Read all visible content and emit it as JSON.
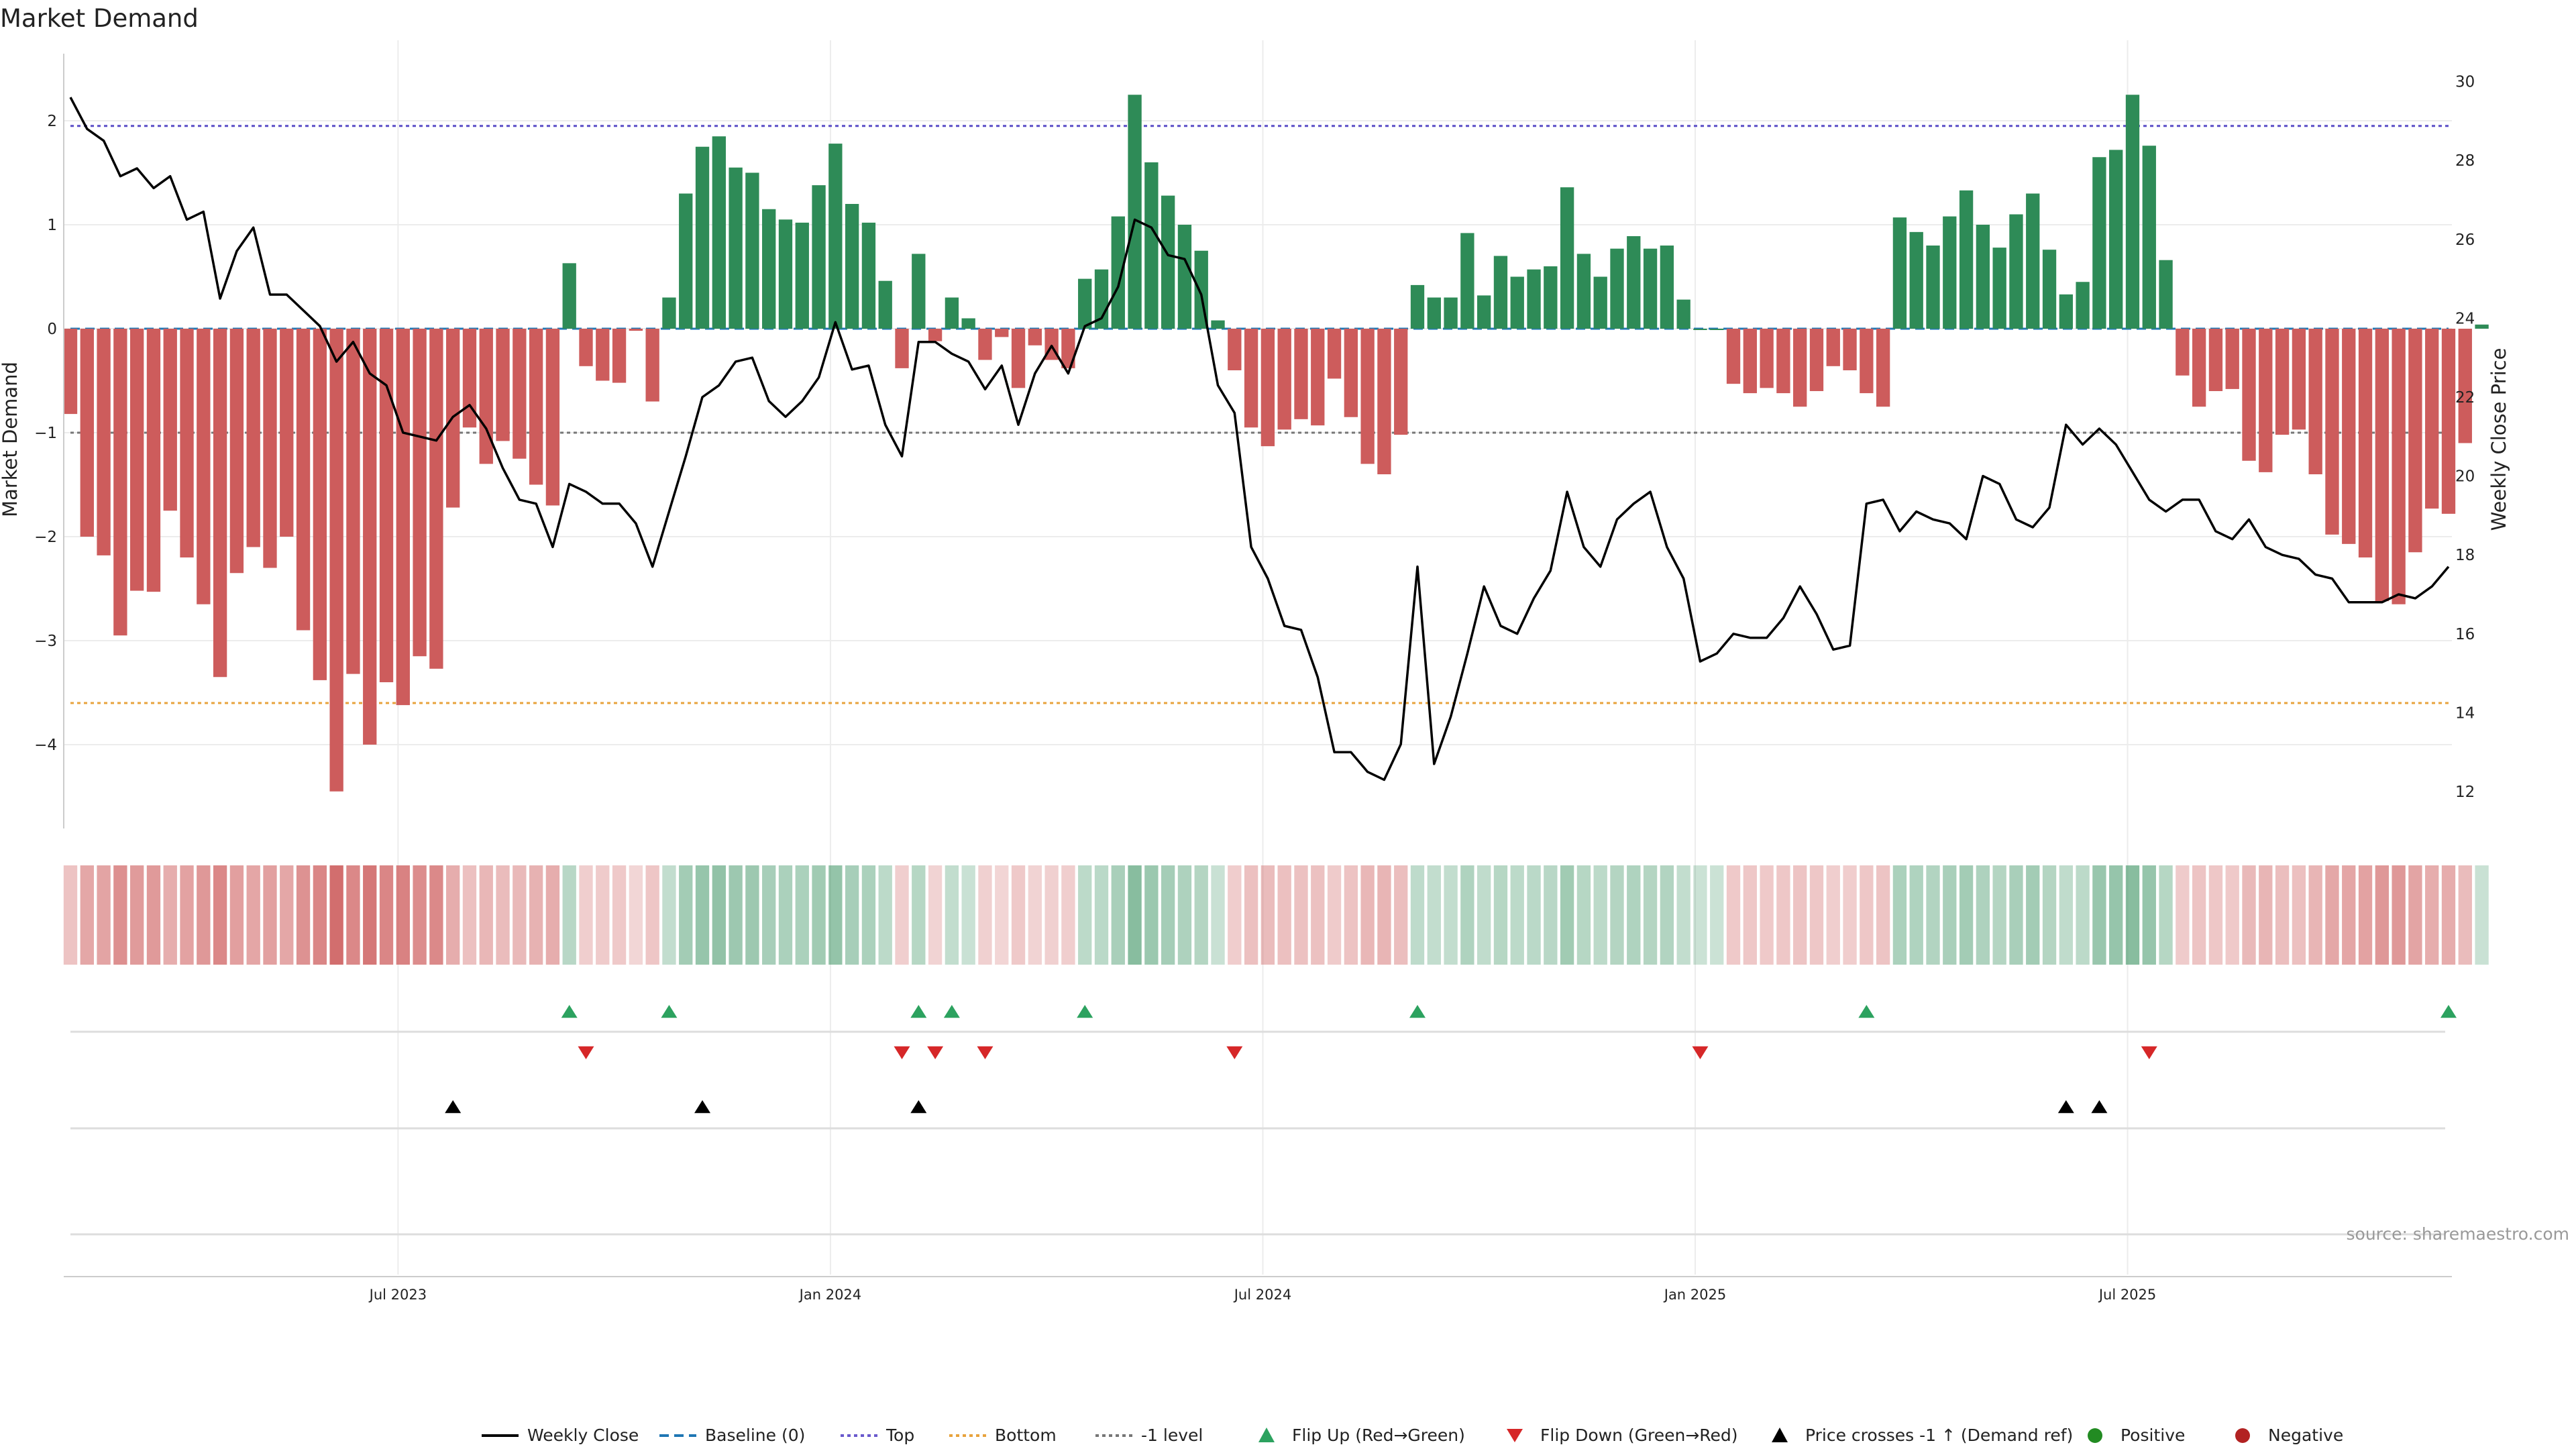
{
  "chart_data": {
    "type": "bar",
    "title": "Market Demand",
    "ylabel": "Market Demand",
    "y2label": "Weekly Close Price",
    "ylim": [
      -4.8,
      2.6
    ],
    "y2lim": [
      11,
      31
    ],
    "yticks": [
      2,
      1,
      0,
      -1,
      -2,
      -3,
      -4
    ],
    "y2ticks": [
      30,
      28,
      26,
      24,
      22,
      20,
      18,
      16,
      14,
      12
    ],
    "reference_lines": {
      "top": 1.95,
      "bottom": -3.6,
      "minus_one": -1,
      "baseline": 0
    },
    "x_months": [
      "Jul 2023",
      "Jan 2024",
      "Jul 2024",
      "Jan 2025",
      "Jul 2025"
    ],
    "x_month_week_index": [
      20,
      46,
      72,
      98,
      124
    ],
    "demand": [
      -0.82,
      -2.0,
      -2.18,
      -2.95,
      -2.52,
      -2.53,
      -1.75,
      -2.2,
      -2.65,
      -3.35,
      -2.35,
      -2.1,
      -2.3,
      -2.0,
      -2.9,
      -3.38,
      -4.45,
      -3.32,
      -4.0,
      -3.4,
      -3.62,
      -3.15,
      -3.27,
      -1.72,
      -0.95,
      -1.3,
      -1.08,
      -1.25,
      -1.5,
      -1.7,
      0.63,
      -0.36,
      -0.5,
      -0.52,
      -0.02,
      -0.7,
      0.3,
      1.3,
      1.75,
      1.85,
      1.55,
      1.5,
      1.15,
      1.05,
      1.02,
      1.38,
      1.78,
      1.2,
      1.02,
      0.46,
      -0.38,
      0.72,
      -0.12,
      0.3,
      0.1,
      -0.3,
      -0.08,
      -0.57,
      -0.16,
      -0.3,
      -0.38,
      0.48,
      0.57,
      1.08,
      2.25,
      1.6,
      1.28,
      1.0,
      0.75,
      0.08,
      -0.4,
      -0.95,
      -1.13,
      -0.97,
      -0.87,
      -0.93,
      -0.48,
      -0.85,
      -1.3,
      -1.4,
      -1.02,
      0.42,
      0.3,
      0.3,
      0.92,
      0.32,
      0.7,
      0.5,
      0.57,
      0.6,
      1.36,
      0.72,
      0.5,
      0.77,
      0.89,
      0.77,
      0.8,
      0.28,
      0.0,
      0.0,
      -0.53,
      -0.62,
      -0.57,
      -0.62,
      -0.75,
      -0.6,
      -0.36,
      -0.4,
      -0.62,
      -0.75,
      1.07,
      0.93,
      0.8,
      1.08,
      1.33,
      1.0,
      0.78,
      1.1,
      1.3,
      0.76,
      0.33,
      0.45,
      1.65,
      1.72,
      2.25,
      1.76,
      0.66,
      -0.45,
      -0.75,
      -0.6,
      -0.58,
      -1.27,
      -1.38,
      -1.02,
      -0.97,
      -1.4,
      -1.98,
      -2.07,
      -2.2,
      -2.62,
      -2.65,
      -2.15,
      -1.73,
      -1.78,
      -1.1,
      0.04
    ],
    "price": [
      29.6,
      28.8,
      28.5,
      27.6,
      27.8,
      27.3,
      27.6,
      26.5,
      26.7,
      24.5,
      25.7,
      26.3,
      24.6,
      24.6,
      24.2,
      23.8,
      22.9,
      23.4,
      22.6,
      22.3,
      21.1,
      21.0,
      20.9,
      21.5,
      21.8,
      21.2,
      20.2,
      19.4,
      19.3,
      18.2,
      19.8,
      19.6,
      19.3,
      19.3,
      18.8,
      17.7,
      19.1,
      20.5,
      22.0,
      22.3,
      22.9,
      23.0,
      21.9,
      21.5,
      21.9,
      22.5,
      23.9,
      22.7,
      22.8,
      21.3,
      20.5,
      23.4,
      23.4,
      23.1,
      22.9,
      22.2,
      22.8,
      21.3,
      22.6,
      23.3,
      22.6,
      23.8,
      24.0,
      24.8,
      26.5,
      26.3,
      25.6,
      25.5,
      24.6,
      22.3,
      21.6,
      18.2,
      17.4,
      16.2,
      16.1,
      14.9,
      13.0,
      13.0,
      12.5,
      12.3,
      13.2,
      17.7,
      12.7,
      13.9,
      15.5,
      17.2,
      16.2,
      16.0,
      16.9,
      17.6,
      19.6,
      18.2,
      17.7,
      18.9,
      19.3,
      19.6,
      18.2,
      17.4,
      15.3,
      15.5,
      16.0,
      15.9,
      15.9,
      16.4,
      17.2,
      16.5,
      15.6,
      15.7,
      19.3,
      19.4,
      18.6,
      19.1,
      18.9,
      18.8,
      18.4,
      20.0,
      19.8,
      18.9,
      18.7,
      19.2,
      21.3,
      20.8,
      21.2,
      20.8,
      20.1,
      19.4,
      19.1,
      19.4,
      19.4,
      18.6,
      18.4,
      18.9,
      18.2,
      18.0,
      17.9,
      17.5,
      17.4,
      16.8,
      16.8,
      16.8,
      17.0,
      16.9,
      17.2,
      17.7
    ],
    "flip_up_weeks": [
      30,
      36,
      51,
      53,
      61,
      81,
      108,
      143
    ],
    "flip_down_weeks": [
      31,
      50,
      52,
      55,
      70,
      98,
      125
    ],
    "price_cross_weeks": [
      23,
      38,
      51,
      120,
      122
    ],
    "legend": [
      {
        "key": "weekly-close",
        "label": "Weekly Close",
        "color": "#000000",
        "style": "line"
      },
      {
        "key": "baseline",
        "label": "Baseline (0)",
        "color": "#1f77b4",
        "style": "dash"
      },
      {
        "key": "top",
        "label": "Top",
        "color": "#6a5acd",
        "style": "dot"
      },
      {
        "key": "bottom",
        "label": "Bottom",
        "color": "#e8a33d",
        "style": "dot"
      },
      {
        "key": "minus-one",
        "label": "-1 level",
        "color": "#777777",
        "style": "dot"
      },
      {
        "key": "flip-up",
        "label": "Flip Up (Red→Green)",
        "color": "#2ca25f",
        "style": "tri-up"
      },
      {
        "key": "flip-down",
        "label": "Flip Down (Green→Red)",
        "color": "#d62728",
        "style": "tri-down"
      },
      {
        "key": "price-cross",
        "label": "Price crosses -1 ↑ (Demand ref)",
        "color": "#000000",
        "style": "tri-up"
      },
      {
        "key": "positive",
        "label": "Positive",
        "color": "#228b22",
        "style": "circle"
      },
      {
        "key": "negative",
        "label": "Negative",
        "color": "#b22222",
        "style": "circle"
      }
    ]
  },
  "colors": {
    "positive_bar": "#2e8b57",
    "negative_bar": "#cd5c5c",
    "positive_strip": "#2e8b57",
    "negative_strip": "#cd5c5c",
    "line": "#000000"
  },
  "source": "source: sharemaestro.com"
}
